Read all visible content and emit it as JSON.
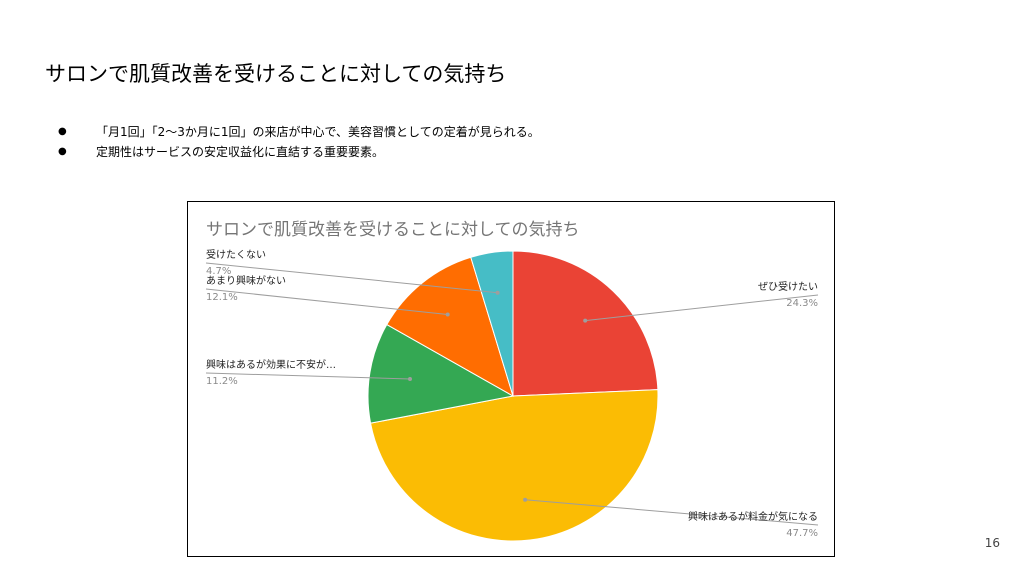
{
  "slide": {
    "title": "サロンで肌質改善を受けることに対しての気持ち",
    "bullets": [
      "「月1回」「2〜3か月に1回」の来店が中心で、美容習慣としての定着が見られる。",
      "定期性はサービスの安定収益化に直結する重要要素。"
    ],
    "page_number": "16"
  },
  "chart_data": {
    "type": "pie",
    "title": "サロンで肌質改善を受けることに対しての気持ち",
    "slices": [
      {
        "label": "ぜひ受けたい",
        "value": 24.3,
        "display": "24.3%",
        "color": "#ea4335"
      },
      {
        "label": "興味はあるが料金が気になる",
        "value": 47.7,
        "display": "47.7%",
        "color": "#fbbc04"
      },
      {
        "label": "興味はあるが効果に不安が…",
        "value": 11.2,
        "display": "11.2%",
        "color": "#34a853"
      },
      {
        "label": "あまり興味がない",
        "value": 12.1,
        "display": "12.1%",
        "color": "#ff6d01"
      },
      {
        "label": "受けたくない",
        "value": 4.7,
        "display": "4.7%",
        "color": "#46bdc6"
      }
    ],
    "start_angle_deg": 0,
    "direction": "clockwise",
    "legend": "callout labels"
  }
}
